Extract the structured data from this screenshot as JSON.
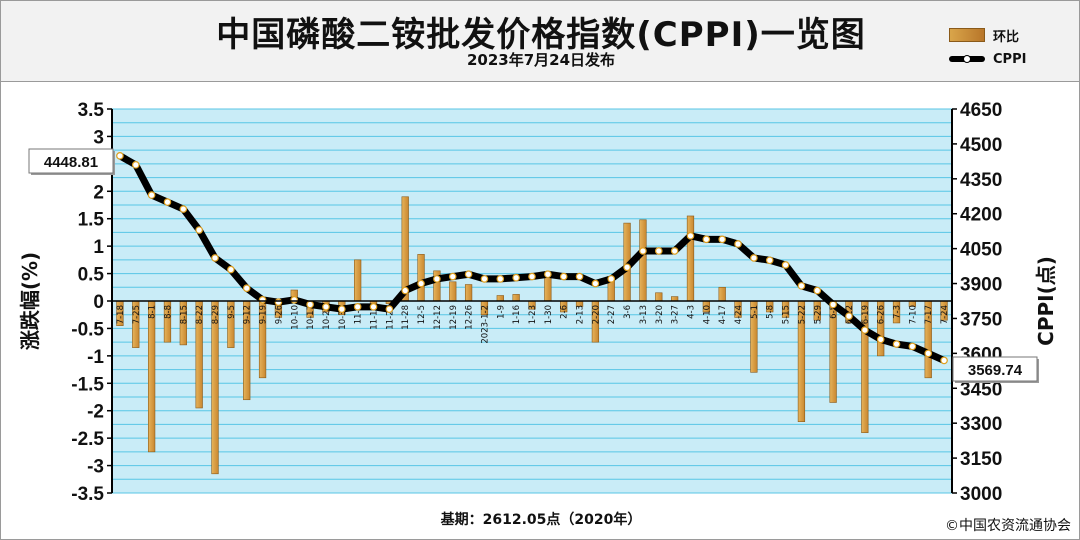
{
  "header": {
    "title": "中国磷酸二铵批发价格指数(CPPI)一览图",
    "subtitle": "2023年7月24日发布"
  },
  "legend": {
    "bar_label": "环比",
    "line_label": "CPPI"
  },
  "footer": {
    "base_note": "基期：2612.05点（2020年）",
    "copyright": "©中国农资流通协会"
  },
  "colors": {
    "plot_background": "#c9ecf7",
    "gridline": "#58c6e6",
    "bar": "#c9872f",
    "line": "#000000",
    "marker_fill": "#ffffff",
    "marker_stroke": "#e0a020"
  },
  "chart_data": {
    "type": "bar+line",
    "y1_axis": {
      "label": "涨跌幅(%)",
      "min": -3.5,
      "max": 3.5,
      "ticks": [
        "-3.5",
        "-3",
        "-2.5",
        "-2",
        "-1.5",
        "-1",
        "-0.5",
        "0",
        "0.5",
        "1",
        "1.5",
        "2",
        "2.5",
        "3",
        "3.5"
      ]
    },
    "y2_axis": {
      "label": "CPPI(点)",
      "min": 3000,
      "max": 4650,
      "ticks": [
        "3000",
        "3150",
        "3300",
        "3450",
        "3600",
        "3750",
        "3900",
        "4050",
        "4200",
        "4350",
        "4500",
        "4650"
      ]
    },
    "grid": true,
    "legend_position": "top-right",
    "categories": [
      "7-18",
      "7-25",
      "8-1",
      "8-8",
      "8-15",
      "8-22",
      "8-29",
      "9-5",
      "9-12",
      "9-19",
      "9-26",
      "10-10",
      "10-17",
      "10-24",
      "10-31",
      "11-7",
      "11-14",
      "11-21",
      "11-28",
      "12-5",
      "12-12",
      "12-19",
      "12-26",
      "2023-1-2",
      "1-9",
      "1-16",
      "1-23",
      "1-30",
      "2-6",
      "2-13",
      "2-20",
      "2-27",
      "3-6",
      "3-13",
      "3-20",
      "3-27",
      "4-3",
      "4-10",
      "4-17",
      "4-24",
      "5-1",
      "5-8",
      "5-15",
      "5-22",
      "5-29",
      "6-5",
      "6-12",
      "6-19",
      "6-26",
      "7-3",
      "7-10",
      "7-17",
      "7-24"
    ],
    "series": [
      {
        "name": "环比",
        "kind": "bar",
        "values": [
          -0.45,
          -0.85,
          -2.75,
          -0.75,
          -0.8,
          -1.95,
          -3.15,
          -0.85,
          -1.8,
          -1.4,
          -0.3,
          0.2,
          -0.3,
          -0.2,
          -0.25,
          0.75,
          -0.15,
          -0.05,
          1.9,
          0.85,
          0.55,
          0.35,
          0.3,
          -0.25,
          0.1,
          0.12,
          -0.15,
          0.45,
          -0.2,
          -0.1,
          -0.75,
          0.45,
          1.42,
          1.48,
          0.15,
          0.08,
          1.55,
          -0.2,
          0.25,
          -0.3,
          -1.3,
          -0.2,
          -0.3,
          -2.2,
          -0.35,
          -1.85,
          -0.4,
          -2.4,
          -1.0,
          -0.4,
          -0.1,
          -1.4,
          -0.35
        ]
      },
      {
        "name": "CPPI",
        "kind": "line",
        "values": [
          4448.81,
          4410,
          4280,
          4250,
          4220,
          4130,
          4010,
          3960,
          3880,
          3830,
          3820,
          3830,
          3810,
          3800,
          3790,
          3800,
          3800,
          3790,
          3870,
          3900,
          3920,
          3930,
          3940,
          3920,
          3920,
          3925,
          3930,
          3940,
          3930,
          3930,
          3900,
          3920,
          3970,
          4040,
          4040,
          4040,
          4105,
          4090,
          4090,
          4070,
          4010,
          4000,
          3980,
          3890,
          3870,
          3810,
          3760,
          3700,
          3660,
          3640,
          3630,
          3600,
          3569.74
        ]
      }
    ],
    "annotations": [
      "4448.81",
      "3569.74"
    ]
  }
}
